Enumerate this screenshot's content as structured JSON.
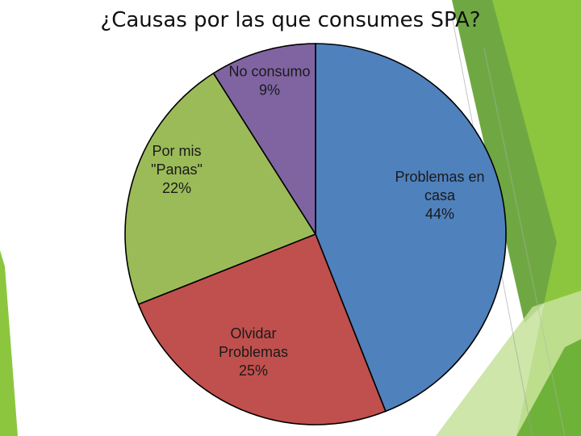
{
  "slide": {
    "title": "¿Causas por las que consumes SPA?",
    "theme_colors": {
      "accent_green": "#8cc63f",
      "accent_dark_green": "#5f9e2f",
      "accent_light_green": "#c5e29b"
    }
  },
  "chart_data": {
    "type": "pie",
    "title": "¿Causas por las que consumes SPA?",
    "start_angle_deg": 0,
    "direction": "clockwise",
    "slices": [
      {
        "label_lines": [
          "Problemas en",
          "casa",
          "44%"
        ],
        "category": "Problemas en casa",
        "value": 44,
        "color": "#4f81bd"
      },
      {
        "label_lines": [
          "Olvidar",
          "Problemas",
          "25%"
        ],
        "category": "Olvidar Problemas",
        "value": 25,
        "color": "#c0504d"
      },
      {
        "label_lines": [
          "Por mis",
          "\"Panas\"",
          "22%"
        ],
        "category": "Por mis \"Panas\"",
        "value": 22,
        "color": "#9bbb59"
      },
      {
        "label_lines": [
          "No consumo",
          "9%"
        ],
        "category": "No consumo",
        "value": 9,
        "color": "#8064a2"
      }
    ]
  }
}
